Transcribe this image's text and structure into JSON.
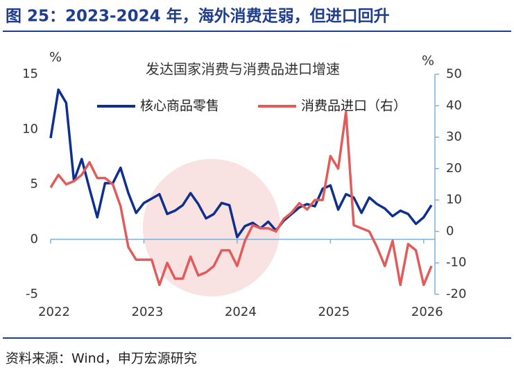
{
  "header": {
    "title": "图 25：2023-2024 年，海外消费走弱，但进口回升"
  },
  "chart_data": {
    "type": "line",
    "title": "发达国家消费与消费品进口增速",
    "ylabel": "%",
    "y2label": "%",
    "xlim": [
      0,
      49
    ],
    "xticks": [
      {
        "value": 0,
        "label": "2022"
      },
      {
        "value": 12,
        "label": "2023"
      },
      {
        "value": 24,
        "label": "2024"
      },
      {
        "value": 36,
        "label": "2025"
      },
      {
        "value": 48,
        "label": "2026"
      }
    ],
    "ylim": [
      -5,
      15
    ],
    "yticks": [
      -5,
      0,
      5,
      10,
      15
    ],
    "y2lim": [
      -20,
      50
    ],
    "y2ticks": [
      -20,
      -10,
      0,
      10,
      20,
      30,
      40,
      50
    ],
    "legend": "top",
    "series": [
      {
        "name": "核心商品零售",
        "color": "#0e2f8e",
        "values": [
          9.2,
          13.6,
          12.4,
          5.3,
          7.3,
          4.6,
          2.0,
          5.1,
          5.1,
          6.5,
          4.2,
          2.4,
          3.3,
          3.7,
          4.1,
          2.3,
          2.6,
          3.1,
          4.2,
          3.2,
          1.9,
          2.3,
          3.3,
          3.1,
          0.2,
          1.2,
          1.5,
          1.0,
          1.6,
          0.8,
          1.7,
          2.3,
          2.9,
          3.2,
          3.0,
          4.6,
          4.9,
          2.7,
          4.1,
          3.8,
          2.4,
          3.8,
          3.2,
          2.8,
          2.1,
          2.6,
          2.3,
          1.4,
          2.0,
          3.1
        ]
      },
      {
        "name": "消费品进口（右）",
        "color": "#e25b5b",
        "axis": "y2",
        "values": [
          14,
          18,
          15,
          16,
          18,
          22,
          17,
          17,
          15,
          8,
          -5,
          -9,
          -9,
          -9,
          -17,
          -10,
          -15,
          -15,
          -8,
          -14,
          -13,
          -11,
          -6,
          -6,
          -11,
          -3,
          2,
          1,
          1,
          0,
          4,
          6,
          9,
          7,
          10,
          10,
          24,
          20,
          38,
          2,
          1,
          0,
          -5,
          -11,
          -3,
          -17,
          -4,
          -6,
          -17,
          -11
        ]
      }
    ]
  },
  "footer": {
    "source": "资料来源：Wind，申万宏源研究"
  }
}
